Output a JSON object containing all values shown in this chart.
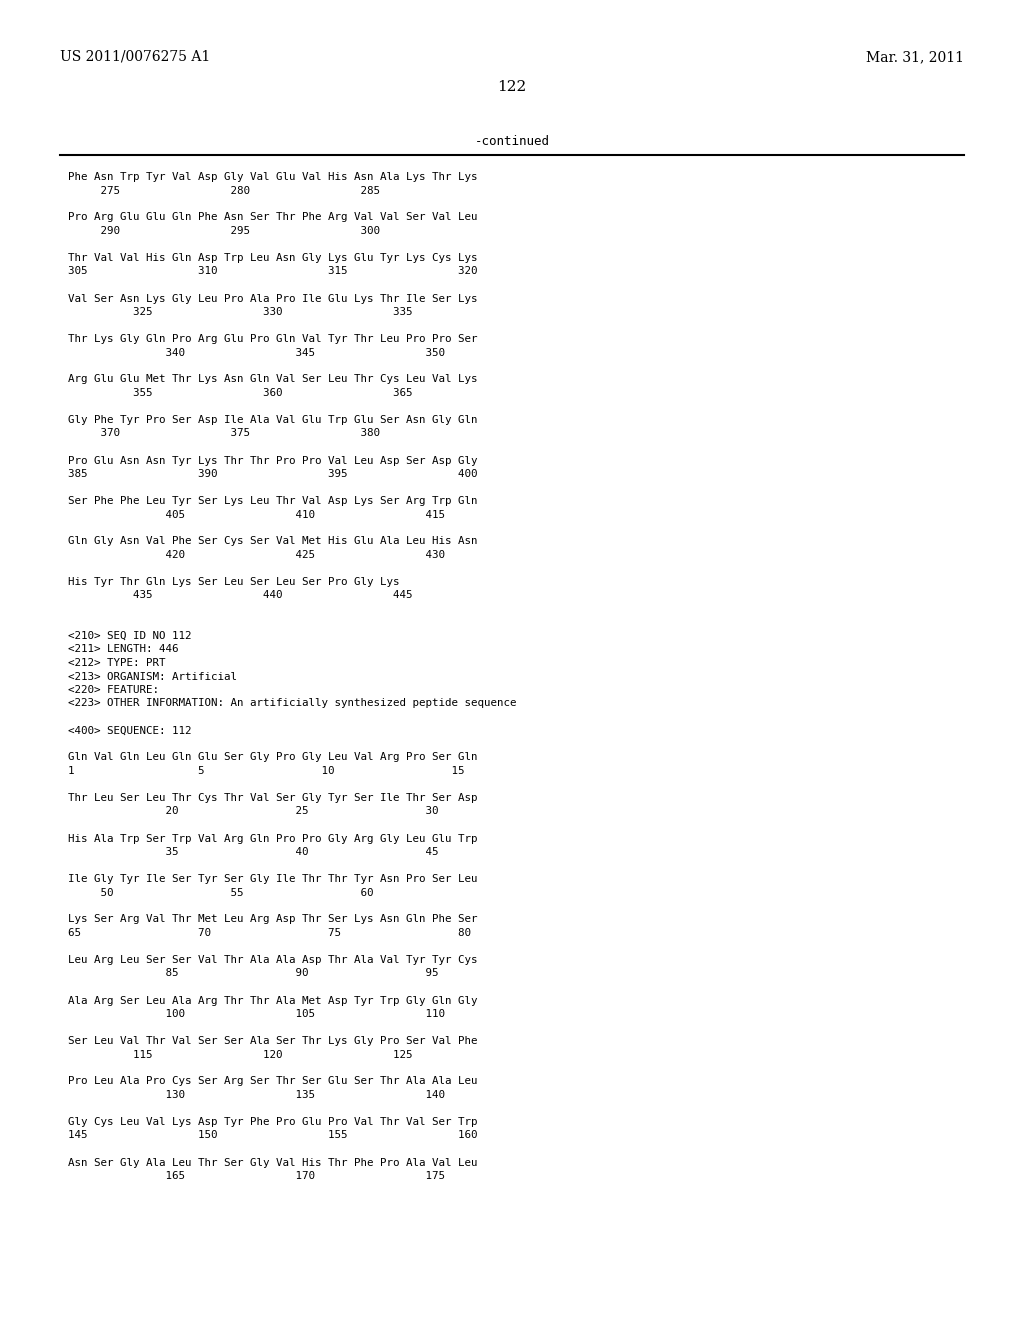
{
  "header_left": "US 2011/0076275 A1",
  "header_right": "Mar. 31, 2011",
  "page_number": "122",
  "continued_label": "-continued",
  "background_color": "#ffffff",
  "text_color": "#000000",
  "font_size": 8.5,
  "title_font_size": 10,
  "content": [
    "Phe Asn Trp Tyr Val Asp Gly Val Glu Val His Asn Ala Lys Thr Lys",
    "     275                 280                 285",
    "",
    "Pro Arg Glu Glu Gln Phe Asn Ser Thr Phe Arg Val Val Ser Val Leu",
    "     290                 295                 300",
    "",
    "Thr Val Val His Gln Asp Trp Leu Asn Gly Lys Glu Tyr Lys Cys Lys",
    "305                 310                 315                 320",
    "",
    "Val Ser Asn Lys Gly Leu Pro Ala Pro Ile Glu Lys Thr Ile Ser Lys",
    "          325                 330                 335",
    "",
    "Thr Lys Gly Gln Pro Arg Glu Pro Gln Val Tyr Thr Leu Pro Pro Ser",
    "               340                 345                 350",
    "",
    "Arg Glu Glu Met Thr Lys Asn Gln Val Ser Leu Thr Cys Leu Val Lys",
    "          355                 360                 365",
    "",
    "Gly Phe Tyr Pro Ser Asp Ile Ala Val Glu Trp Glu Ser Asn Gly Gln",
    "     370                 375                 380",
    "",
    "Pro Glu Asn Asn Tyr Lys Thr Thr Pro Pro Val Leu Asp Ser Asp Gly",
    "385                 390                 395                 400",
    "",
    "Ser Phe Phe Leu Tyr Ser Lys Leu Thr Val Asp Lys Ser Arg Trp Gln",
    "               405                 410                 415",
    "",
    "Gln Gly Asn Val Phe Ser Cys Ser Val Met His Glu Ala Leu His Asn",
    "               420                 425                 430",
    "",
    "His Tyr Thr Gln Lys Ser Leu Ser Leu Ser Pro Gly Lys",
    "          435                 440                 445",
    "",
    "",
    "<210> SEQ ID NO 112",
    "<211> LENGTH: 446",
    "<212> TYPE: PRT",
    "<213> ORGANISM: Artificial",
    "<220> FEATURE:",
    "<223> OTHER INFORMATION: An artificially synthesized peptide sequence",
    "",
    "<400> SEQUENCE: 112",
    "",
    "Gln Val Gln Leu Gln Glu Ser Gly Pro Gly Leu Val Arg Pro Ser Gln",
    "1                   5                  10                  15",
    "",
    "Thr Leu Ser Leu Thr Cys Thr Val Ser Gly Tyr Ser Ile Thr Ser Asp",
    "               20                  25                  30",
    "",
    "His Ala Trp Ser Trp Val Arg Gln Pro Pro Gly Arg Gly Leu Glu Trp",
    "               35                  40                  45",
    "",
    "Ile Gly Tyr Ile Ser Tyr Ser Gly Ile Thr Thr Tyr Asn Pro Ser Leu",
    "     50                  55                  60",
    "",
    "Lys Ser Arg Val Thr Met Leu Arg Asp Thr Ser Lys Asn Gln Phe Ser",
    "65                  70                  75                  80",
    "",
    "Leu Arg Leu Ser Ser Val Thr Ala Ala Asp Thr Ala Val Tyr Tyr Cys",
    "               85                  90                  95",
    "",
    "Ala Arg Ser Leu Ala Arg Thr Thr Ala Met Asp Tyr Trp Gly Gln Gly",
    "               100                 105                 110",
    "",
    "Ser Leu Val Thr Val Ser Ser Ala Ser Thr Lys Gly Pro Ser Val Phe",
    "          115                 120                 125",
    "",
    "Pro Leu Ala Pro Cys Ser Arg Ser Thr Ser Glu Ser Thr Ala Ala Leu",
    "               130                 135                 140",
    "",
    "Gly Cys Leu Val Lys Asp Tyr Phe Pro Glu Pro Val Thr Val Ser Trp",
    "145                 150                 155                 160",
    "",
    "Asn Ser Gly Ala Leu Thr Ser Gly Val His Thr Phe Pro Ala Val Leu",
    "               165                 170                 175"
  ]
}
